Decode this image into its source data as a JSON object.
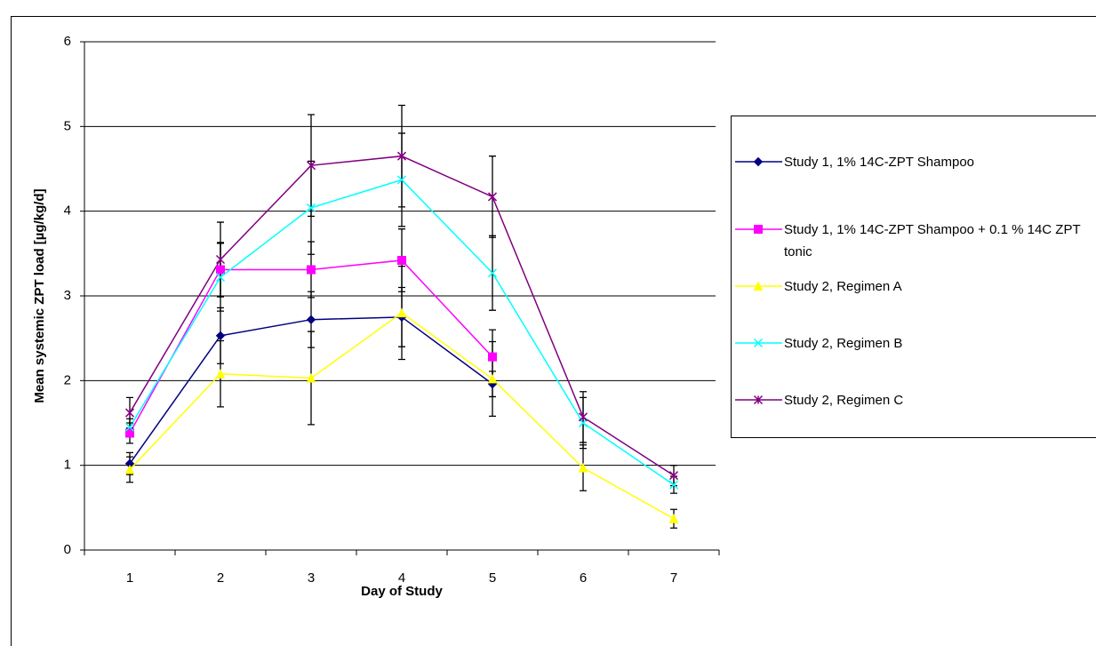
{
  "chart_data": {
    "type": "line",
    "x_label": "Day of Study",
    "y_label": "Mean systemic ZPT load [µg/kg/d]",
    "categories": [
      "1",
      "2",
      "3",
      "4",
      "5",
      "6",
      "7"
    ],
    "ylim": [
      0,
      6
    ],
    "yticks": [
      0,
      1,
      2,
      3,
      4,
      5,
      6
    ],
    "grid": true,
    "legend": "right",
    "series": [
      {
        "name": "Study 1, 1% 14C-ZPT Shampoo",
        "color": "#000080",
        "marker": "diamond",
        "values": [
          1.02,
          2.53,
          2.72,
          2.75,
          1.96,
          null,
          null
        ],
        "errors": [
          0.13,
          0.33,
          0.33,
          0.35,
          0.15,
          null,
          null
        ]
      },
      {
        "name": "Study 1, 1% 14C-ZPT Shampoo + 0.1 % 14C ZPT tonic",
        "color": "#FF00FF",
        "marker": "square",
        "values": [
          1.38,
          3.31,
          3.31,
          3.42,
          2.28,
          null,
          null
        ],
        "errors": [
          0.12,
          0.32,
          0.33,
          0.37,
          0.32,
          null,
          null
        ]
      },
      {
        "name": "Study 2, Regimen A",
        "color": "#FFFF00",
        "marker": "triangle",
        "values": [
          0.95,
          2.08,
          2.03,
          2.8,
          2.02,
          0.97,
          0.37
        ],
        "errors": [
          0.15,
          0.39,
          0.55,
          0.55,
          0.44,
          0.27,
          0.11
        ]
      },
      {
        "name": "Study 2, Regimen B",
        "color": "#00FFFF",
        "marker": "x",
        "values": [
          1.45,
          3.22,
          4.04,
          4.37,
          3.27,
          1.5,
          0.77
        ],
        "errors": [
          0.1,
          0.4,
          0.55,
          0.55,
          0.44,
          0.3,
          0.1
        ]
      },
      {
        "name": "Study 2, Regimen C",
        "color": "#800080",
        "marker": "star",
        "values": [
          1.62,
          3.43,
          4.54,
          4.65,
          4.17,
          1.57,
          0.88
        ],
        "errors": [
          0.18,
          0.44,
          0.6,
          0.6,
          0.48,
          0.3,
          0.12
        ]
      }
    ]
  }
}
